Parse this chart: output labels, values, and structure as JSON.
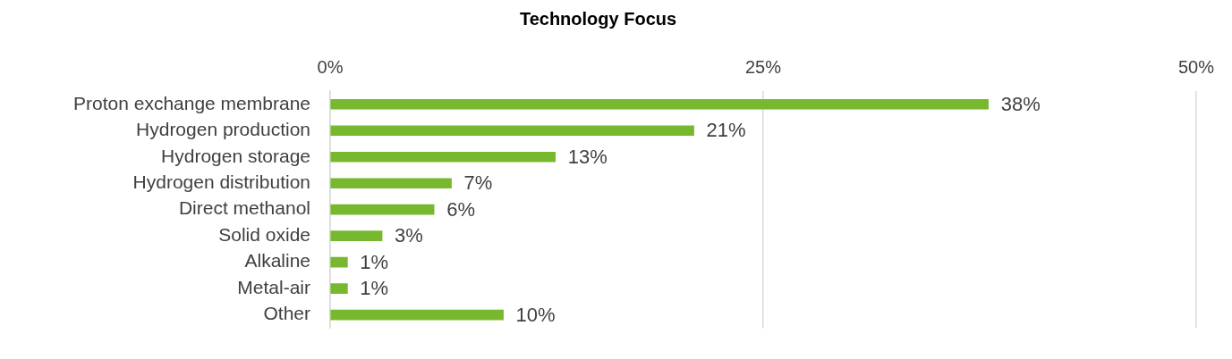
{
  "chart_data": {
    "type": "bar",
    "orientation": "horizontal",
    "title": "Technology Focus",
    "categories": [
      "Proton exchange membrane",
      "Hydrogen production",
      "Hydrogen storage",
      "Hydrogen distribution",
      "Direct methanol",
      "Solid oxide",
      "Alkaline",
      "Metal-air",
      "Other"
    ],
    "values": [
      38,
      21,
      13,
      7,
      6,
      3,
      1,
      1,
      10
    ],
    "value_labels": [
      "38%",
      "21%",
      "13%",
      "7%",
      "6%",
      "3%",
      "1%",
      "1%",
      "10%"
    ],
    "color": "#77b82f",
    "xlim": [
      0,
      50
    ],
    "xticks": [
      {
        "value": 0,
        "label": "0%"
      },
      {
        "value": 25,
        "label": "25%"
      },
      {
        "value": 50,
        "label": "50%"
      }
    ],
    "grid": "x",
    "legend": false
  }
}
